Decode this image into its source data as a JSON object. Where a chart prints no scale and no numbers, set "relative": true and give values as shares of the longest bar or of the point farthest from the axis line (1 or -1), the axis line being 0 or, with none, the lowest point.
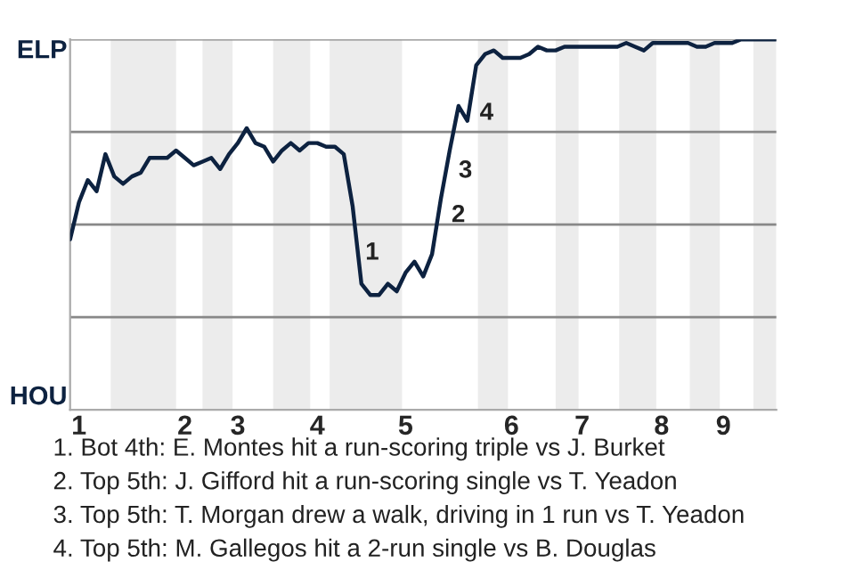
{
  "chart_data": {
    "type": "line",
    "relative": true,
    "categories": [
      null,
      "1",
      null,
      null,
      null,
      null,
      null,
      null,
      null,
      null,
      null,
      null,
      null,
      "2",
      null,
      null,
      null,
      null,
      null,
      "3",
      null,
      null,
      null,
      null,
      null,
      null,
      null,
      null,
      "4",
      null,
      null,
      null,
      null,
      null,
      null,
      null,
      null,
      null,
      "5",
      null,
      null,
      null,
      null,
      null,
      null,
      null,
      null,
      null,
      null,
      null,
      "6",
      null,
      null,
      null,
      null,
      null,
      null,
      null,
      "7",
      null,
      null,
      null,
      null,
      null,
      null,
      null,
      null,
      "8",
      null,
      null,
      null,
      null,
      null,
      null,
      "9",
      null,
      null,
      null,
      null,
      null,
      null
    ],
    "series": [
      {
        "color": "#0d2240",
        "values": [
          0.46,
          0.56,
          0.62,
          0.59,
          0.69,
          0.63,
          0.61,
          0.63,
          0.64,
          0.68,
          0.68,
          0.68,
          0.7,
          0.68,
          0.66,
          0.67,
          0.68,
          0.65,
          0.69,
          0.72,
          0.76,
          0.72,
          0.71,
          0.67,
          0.7,
          0.72,
          0.7,
          0.72,
          0.72,
          0.71,
          0.71,
          0.69,
          0.55,
          0.34,
          0.31,
          0.31,
          0.34,
          0.32,
          0.37,
          0.4,
          0.36,
          0.42,
          0.57,
          0.7,
          0.82,
          0.78,
          0.93,
          0.96,
          0.97,
          0.95,
          0.95,
          0.95,
          0.96,
          0.98,
          0.97,
          0.97,
          0.98,
          0.98,
          0.98,
          0.98,
          0.98,
          0.98,
          0.98,
          0.99,
          0.98,
          0.97,
          0.99,
          0.99,
          0.99,
          0.99,
          0.99,
          0.98,
          0.98,
          0.99,
          0.99,
          0.99,
          1.0,
          1.0,
          1.0,
          1.0,
          1.0
        ]
      }
    ],
    "marker": "none",
    "line_style": "solid",
    "ref_lines": [
      {
        "axis": "y",
        "value": 0.25,
        "color": "#888888"
      },
      {
        "axis": "y",
        "value": 0.5,
        "color": "#888888"
      },
      {
        "axis": "y",
        "value": 0.75,
        "color": "#888888"
      },
      {
        "axis": "y",
        "value": 1,
        "color": "#888888"
      }
    ],
    "annotations": [
      "ELP",
      "HOU",
      "1",
      "2",
      "3",
      "4",
      "1. Bot 4th: E. Montes hit a run-scoring triple vs J. Burket",
      "2. Top 5th: J. Gifford hit a run-scoring single vs T. Yeadon",
      "3. Top 5th: T. Morgan drew a walk, driving in 1 run vs T. Yeadon",
      "4. Top 5th: M. Gallegos hit a 2-run single vs B. Douglas"
    ]
  }
}
